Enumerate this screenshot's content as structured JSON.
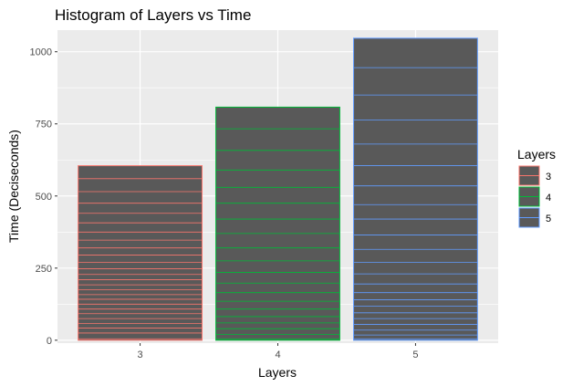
{
  "chart_data": {
    "type": "bar",
    "title": "Histogram of Layers vs Time",
    "xlabel": "Layers",
    "ylabel": "Time (Deciseconds)",
    "categories": [
      "3",
      "4",
      "5"
    ],
    "values": [
      605,
      808,
      1047
    ],
    "ylim": [
      -10,
      1075
    ],
    "yticks": [
      0,
      250,
      500,
      750,
      1000
    ],
    "grid": true,
    "bar_fill": "#595959",
    "panel_background": "#ebebeb",
    "series": [
      {
        "name": "3",
        "color": "#f8766d",
        "segments": [
          5,
          25,
          42,
          58,
          75,
          92,
          108,
          125,
          142,
          158,
          175,
          192,
          210,
          228,
          248,
          270,
          295,
          320,
          347,
          375,
          407,
          440,
          475,
          515,
          560
        ]
      },
      {
        "name": "4",
        "color": "#00ba38",
        "segments": [
          5,
          20,
          40,
          60,
          82,
          108,
          135,
          165,
          198,
          235,
          275,
          320,
          370,
          420,
          475,
          530,
          590,
          658,
          733
        ]
      },
      {
        "name": "5",
        "color": "#619cff",
        "segments": [
          5,
          18,
          35,
          55,
          75,
          95,
          118,
          140,
          165,
          195,
          230,
          270,
          315,
          365,
          420,
          470,
          535,
          605,
          680,
          763,
          850,
          945
        ]
      }
    ],
    "legend": {
      "title": "Layers",
      "labels": [
        "3",
        "4",
        "5"
      ],
      "placement": "right"
    }
  }
}
